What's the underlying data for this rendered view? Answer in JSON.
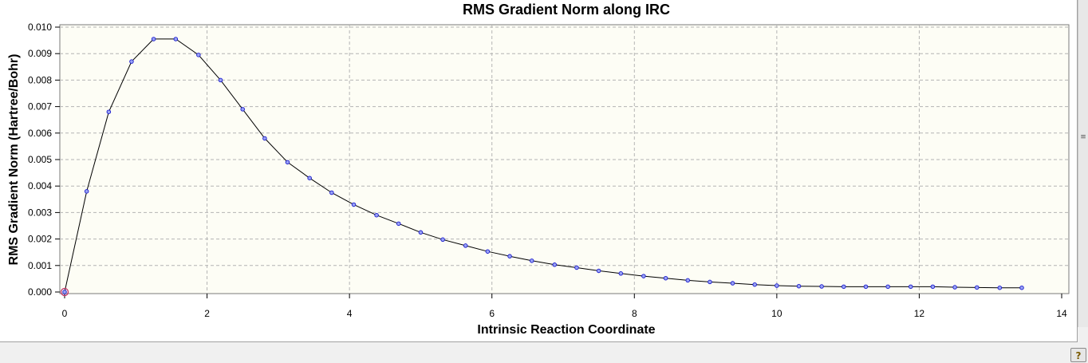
{
  "chart_data": {
    "type": "line",
    "title": "RMS Gradient Norm along IRC",
    "xlabel": "Intrinsic Reaction Coordinate",
    "ylabel": "RMS Gradient Norm (Hartree/Bohr)",
    "xlim": [
      0,
      14
    ],
    "ylim": [
      0,
      0.01
    ],
    "xticks": [
      "0",
      "2",
      "4",
      "6",
      "8",
      "10",
      "12",
      "14"
    ],
    "yticks": [
      "0.000",
      "0.001",
      "0.002",
      "0.003",
      "0.004",
      "0.005",
      "0.006",
      "0.007",
      "0.008",
      "0.009",
      "0.010"
    ],
    "grid": true,
    "series": [
      {
        "x": [
          0,
          0.31,
          0.62,
          0.94,
          1.25,
          1.56,
          1.88,
          2.19,
          2.5,
          2.81,
          3.13,
          3.44,
          3.75,
          4.06,
          4.38,
          4.69,
          5.0,
          5.31,
          5.63,
          5.94,
          6.25,
          6.56,
          6.88,
          7.19,
          7.5,
          7.81,
          8.13,
          8.44,
          8.75,
          9.06,
          9.38,
          9.69,
          10.0,
          10.31,
          10.63,
          10.94,
          11.25,
          11.56,
          11.88,
          12.19,
          12.5,
          12.81,
          13.13,
          13.44
        ],
        "y": [
          0.0,
          0.0038,
          0.0068,
          0.0087,
          0.00955,
          0.00955,
          0.00895,
          0.008,
          0.0069,
          0.0058,
          0.0049,
          0.0043,
          0.00375,
          0.0033,
          0.0029,
          0.00258,
          0.00225,
          0.00198,
          0.00175,
          0.00153,
          0.00135,
          0.00118,
          0.00103,
          0.00092,
          0.0008,
          0.0007,
          0.0006,
          0.00052,
          0.00044,
          0.00038,
          0.00033,
          0.00028,
          0.00024,
          0.00022,
          0.00021,
          0.0002,
          0.0002,
          0.0002,
          0.0002,
          0.0002,
          0.00018,
          0.00017,
          0.00016,
          0.00016
        ]
      }
    ],
    "colors": {
      "plot_background": "#fdfdf5",
      "line": "#000000",
      "marker_fill": "#9aa3f5",
      "marker_stroke": "#1a1acc",
      "grid": "#b4b4b4",
      "highlight": "#c0306a"
    }
  },
  "ui": {
    "scroll_grip_glyph": "≡",
    "help_glyph": "?"
  }
}
